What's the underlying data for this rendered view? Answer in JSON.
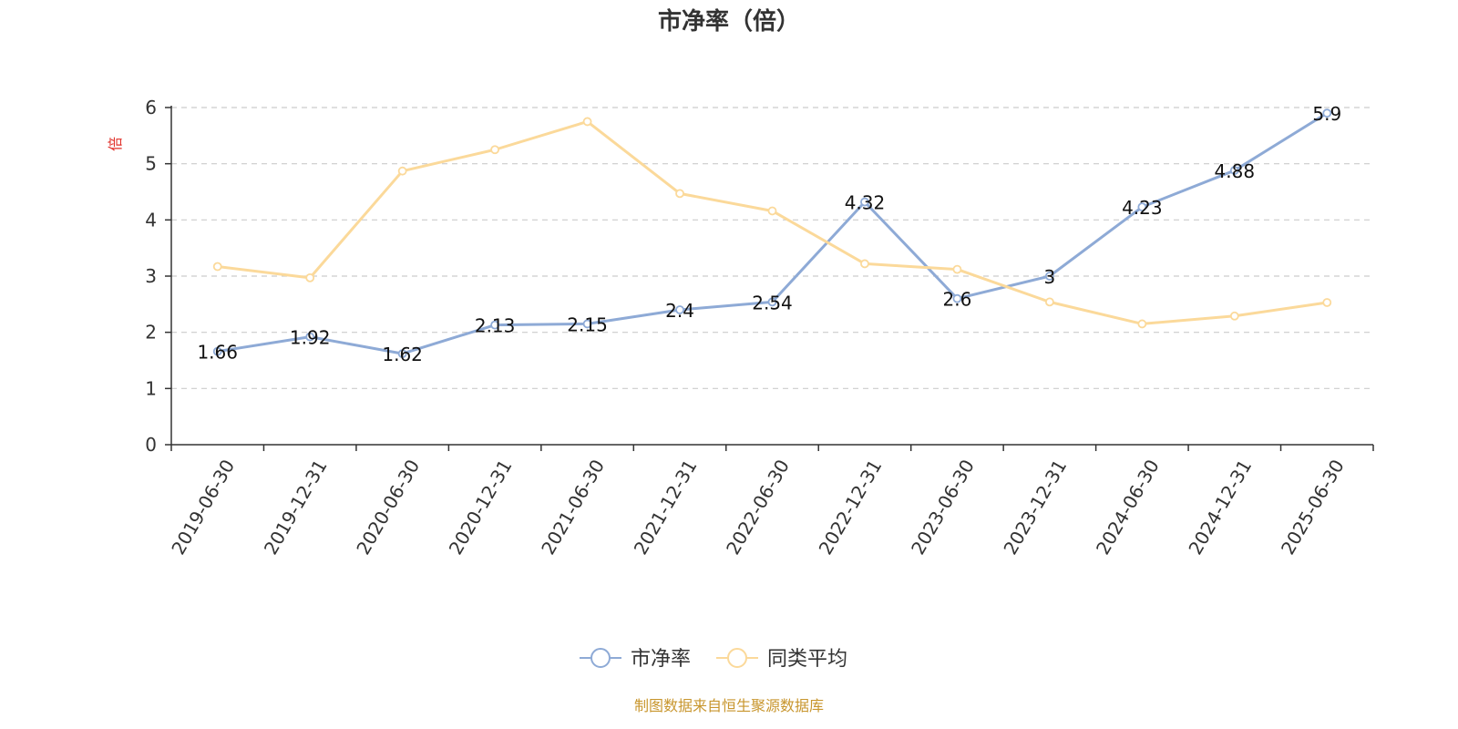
{
  "chart_data": {
    "type": "line",
    "title": "市净率（倍）",
    "ylabel": "倍",
    "xlabel": "",
    "ylim": [
      0,
      6
    ],
    "yticks": [
      0,
      1,
      2,
      3,
      4,
      5,
      6
    ],
    "grid": true,
    "legend_position": "bottom-center",
    "categories": [
      "2019-06-30",
      "2019-12-31",
      "2020-06-30",
      "2020-12-31",
      "2021-06-30",
      "2021-12-31",
      "2022-06-30",
      "2022-12-31",
      "2023-06-30",
      "2023-12-31",
      "2024-06-30",
      "2024-12-31",
      "2025-06-30"
    ],
    "series": [
      {
        "name": "市净率",
        "color": "#8eaad6",
        "values": [
          1.66,
          1.92,
          1.62,
          2.13,
          2.15,
          2.4,
          2.54,
          4.32,
          2.6,
          3,
          4.23,
          4.88,
          5.9
        ],
        "labels": [
          "1.66",
          "1.92",
          "1.62",
          "2.13",
          "2.15",
          "2.4",
          "2.54",
          "4.32",
          "2.6",
          "3",
          "4.23",
          "4.88",
          "5.9"
        ]
      },
      {
        "name": "同类平均",
        "color": "#fbd99a",
        "values": [
          3.17,
          2.97,
          4.87,
          5.25,
          5.75,
          4.47,
          4.16,
          3.22,
          3.12,
          2.54,
          2.15,
          2.29,
          2.53
        ]
      }
    ]
  },
  "source_note": "制图数据来自恒生聚源数据库"
}
